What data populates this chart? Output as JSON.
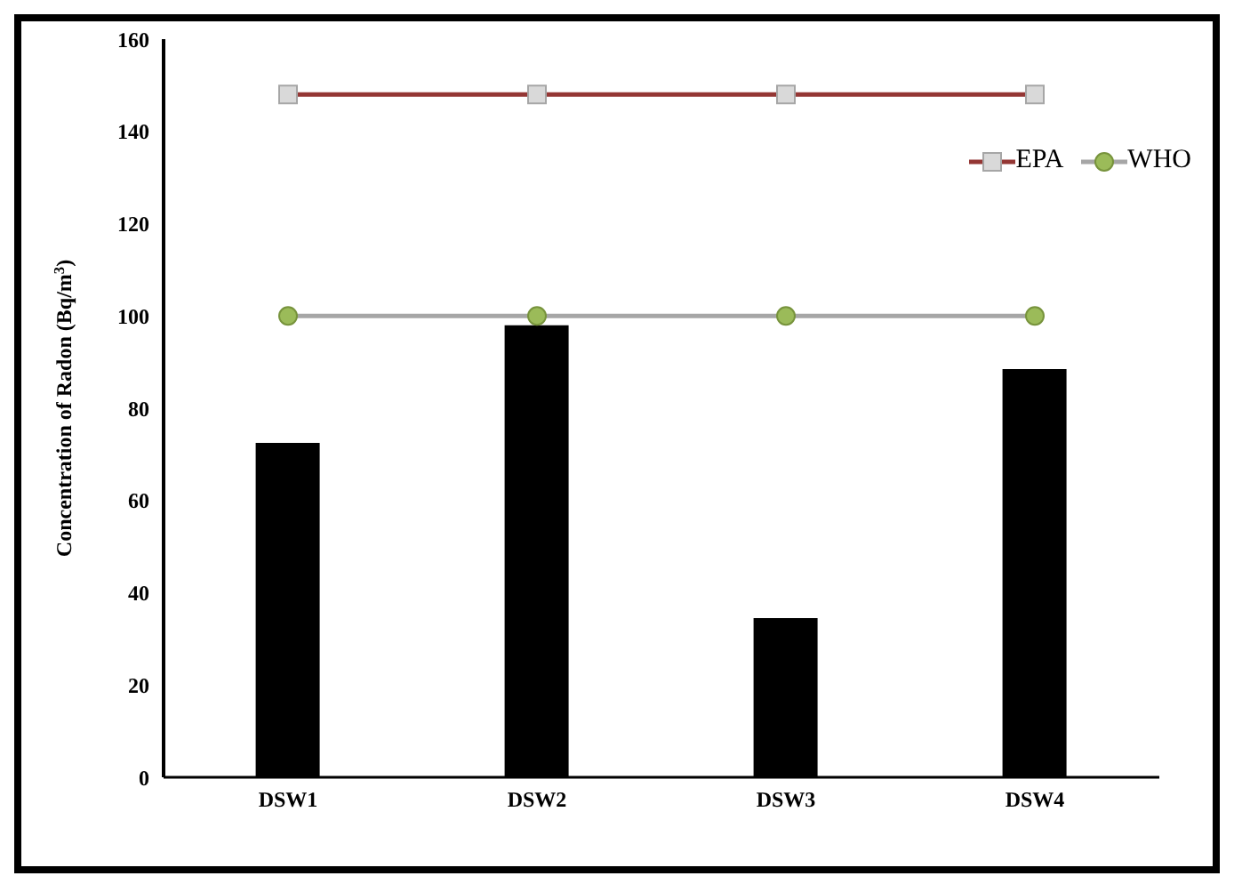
{
  "chart_data": {
    "type": "bar",
    "ylabel": "Concentration of Radon (Bq/m$^{3}$)",
    "categories": [
      "DSW1",
      "DSW2",
      "DSW3",
      "DSW4"
    ],
    "series": [
      {
        "color": "#000000",
        "values": [
          72.5,
          98,
          34.5,
          88.5
        ]
      },
      {
        "type": "line",
        "name": "EPA",
        "color": "#943634",
        "marker": "square",
        "values": [
          148,
          148,
          148,
          148
        ]
      },
      {
        "type": "line",
        "name": "WHO",
        "color": "#a6a6a6",
        "marker": "circle",
        "values": [
          100,
          100,
          100,
          100
        ]
      }
    ],
    "ylim": [
      0,
      160
    ],
    "yticks": [
      0,
      20,
      40,
      60,
      80,
      100,
      120,
      140,
      160
    ],
    "legend": "top right"
  }
}
